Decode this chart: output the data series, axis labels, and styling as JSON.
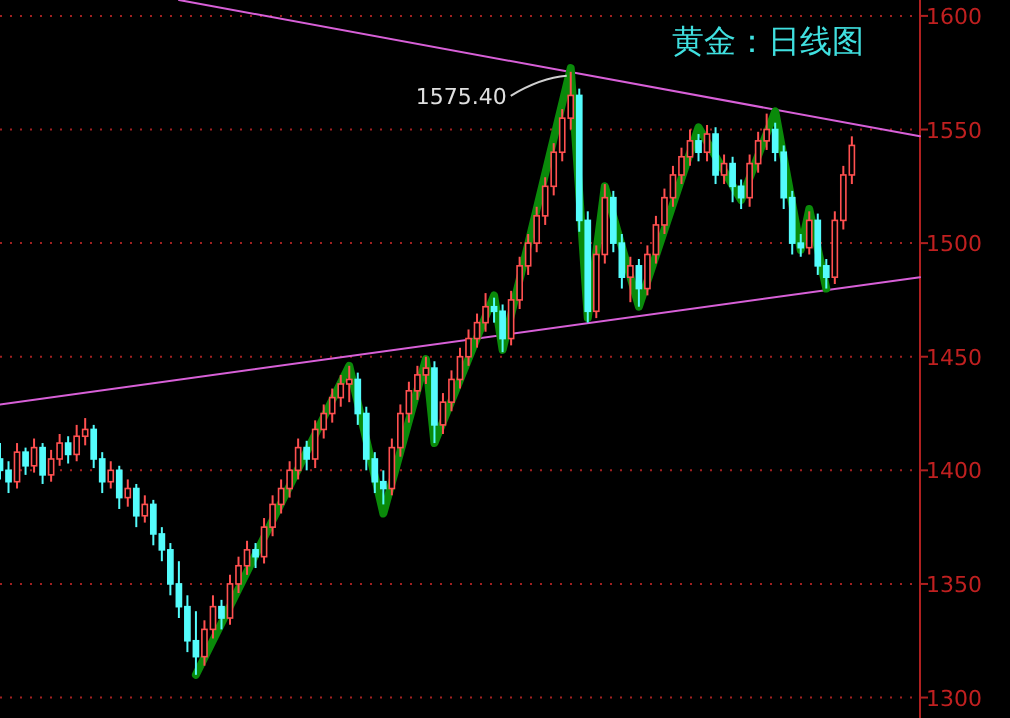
{
  "chart_data": {
    "type": "candlestick",
    "title": "黄金：日线图",
    "categories": [
      null,
      null,
      null,
      null,
      null,
      null,
      null,
      null,
      null,
      null,
      null,
      null,
      null,
      null,
      null,
      null,
      null,
      null,
      null,
      null,
      null,
      null,
      null,
      null,
      null,
      null,
      null,
      null,
      null,
      null,
      null,
      null,
      null,
      null,
      null,
      null,
      null,
      null,
      null,
      null,
      null,
      null,
      null,
      null,
      null,
      null,
      null,
      null,
      null,
      null,
      null,
      null,
      null,
      null,
      null,
      null,
      null,
      null,
      null,
      null,
      null,
      null,
      null,
      null,
      null,
      null,
      null,
      null,
      null,
      null,
      null,
      null,
      null,
      null,
      null,
      null,
      null,
      null,
      null,
      null,
      null,
      null,
      null,
      null,
      null,
      null,
      null,
      null,
      null,
      null,
      null,
      null,
      null,
      null,
      null,
      null,
      null,
      null,
      null,
      null,
      null,
      null,
      null,
      null,
      null,
      null,
      null,
      null,
      null
    ],
    "ohlc": [
      [
        1405,
        1412,
        1396,
        1400
      ],
      [
        1400,
        1404,
        1390,
        1395
      ],
      [
        1395,
        1412,
        1392,
        1408
      ],
      [
        1408,
        1410,
        1398,
        1402
      ],
      [
        1402,
        1414,
        1399,
        1410
      ],
      [
        1410,
        1412,
        1394,
        1398
      ],
      [
        1398,
        1409,
        1395,
        1405
      ],
      [
        1405,
        1416,
        1402,
        1412
      ],
      [
        1412,
        1415,
        1403,
        1407
      ],
      [
        1407,
        1420,
        1404,
        1415
      ],
      [
        1415,
        1423,
        1411,
        1418
      ],
      [
        1418,
        1420,
        1401,
        1405
      ],
      [
        1405,
        1408,
        1390,
        1395
      ],
      [
        1395,
        1404,
        1392,
        1400
      ],
      [
        1400,
        1402,
        1383,
        1388
      ],
      [
        1388,
        1396,
        1384,
        1392
      ],
      [
        1392,
        1394,
        1375,
        1380
      ],
      [
        1380,
        1389,
        1377,
        1385
      ],
      [
        1385,
        1387,
        1367,
        1372
      ],
      [
        1372,
        1375,
        1360,
        1365
      ],
      [
        1365,
        1368,
        1345,
        1350
      ],
      [
        1350,
        1360,
        1335,
        1340
      ],
      [
        1340,
        1345,
        1320,
        1325
      ],
      [
        1325,
        1338,
        1310,
        1318
      ],
      [
        1318,
        1334,
        1314,
        1330
      ],
      [
        1330,
        1345,
        1326,
        1340
      ],
      [
        1340,
        1343,
        1330,
        1335
      ],
      [
        1335,
        1354,
        1332,
        1350
      ],
      [
        1350,
        1362,
        1346,
        1358
      ],
      [
        1358,
        1369,
        1354,
        1365
      ],
      [
        1365,
        1368,
        1357,
        1362
      ],
      [
        1362,
        1379,
        1359,
        1375
      ],
      [
        1375,
        1389,
        1371,
        1385
      ],
      [
        1385,
        1396,
        1381,
        1392
      ],
      [
        1392,
        1404,
        1388,
        1400
      ],
      [
        1400,
        1414,
        1396,
        1410
      ],
      [
        1410,
        1413,
        1400,
        1405
      ],
      [
        1405,
        1422,
        1401,
        1418
      ],
      [
        1418,
        1429,
        1414,
        1425
      ],
      [
        1425,
        1436,
        1421,
        1432
      ],
      [
        1432,
        1442,
        1428,
        1438
      ],
      [
        1438,
        1446,
        1430,
        1440
      ],
      [
        1440,
        1443,
        1420,
        1425
      ],
      [
        1425,
        1428,
        1400,
        1405
      ],
      [
        1405,
        1408,
        1390,
        1395
      ],
      [
        1395,
        1400,
        1385,
        1392
      ],
      [
        1392,
        1414,
        1389,
        1410
      ],
      [
        1410,
        1429,
        1406,
        1425
      ],
      [
        1425,
        1439,
        1421,
        1435
      ],
      [
        1435,
        1446,
        1431,
        1442
      ],
      [
        1442,
        1450,
        1438,
        1445
      ],
      [
        1445,
        1448,
        1412,
        1420
      ],
      [
        1420,
        1434,
        1416,
        1430
      ],
      [
        1430,
        1444,
        1426,
        1440
      ],
      [
        1440,
        1454,
        1436,
        1450
      ],
      [
        1450,
        1462,
        1446,
        1458
      ],
      [
        1458,
        1469,
        1454,
        1465
      ],
      [
        1465,
        1478,
        1461,
        1472
      ],
      [
        1472,
        1476,
        1465,
        1470
      ],
      [
        1470,
        1473,
        1452,
        1458
      ],
      [
        1458,
        1479,
        1455,
        1475
      ],
      [
        1475,
        1494,
        1471,
        1490
      ],
      [
        1490,
        1504,
        1486,
        1500
      ],
      [
        1500,
        1516,
        1496,
        1512
      ],
      [
        1512,
        1529,
        1508,
        1525
      ],
      [
        1525,
        1544,
        1521,
        1540
      ],
      [
        1540,
        1559,
        1536,
        1555
      ],
      [
        1555,
        1575.4,
        1550,
        1565
      ],
      [
        1565,
        1568,
        1505,
        1510
      ],
      [
        1510,
        1514,
        1465,
        1470
      ],
      [
        1470,
        1499,
        1467,
        1495
      ],
      [
        1495,
        1526,
        1491,
        1520
      ],
      [
        1520,
        1523,
        1496,
        1500
      ],
      [
        1500,
        1504,
        1480,
        1485
      ],
      [
        1485,
        1494,
        1474,
        1490
      ],
      [
        1490,
        1493,
        1472,
        1480
      ],
      [
        1480,
        1499,
        1477,
        1495
      ],
      [
        1495,
        1512,
        1491,
        1508
      ],
      [
        1508,
        1524,
        1504,
        1520
      ],
      [
        1520,
        1534,
        1516,
        1530
      ],
      [
        1530,
        1542,
        1526,
        1538
      ],
      [
        1538,
        1550,
        1534,
        1545
      ],
      [
        1545,
        1548,
        1536,
        1540
      ],
      [
        1540,
        1552,
        1536,
        1548
      ],
      [
        1548,
        1551,
        1526,
        1530
      ],
      [
        1530,
        1539,
        1526,
        1535
      ],
      [
        1535,
        1538,
        1518,
        1525
      ],
      [
        1525,
        1528,
        1515,
        1520
      ],
      [
        1520,
        1539,
        1516,
        1535
      ],
      [
        1535,
        1549,
        1531,
        1545
      ],
      [
        1545,
        1557,
        1541,
        1550
      ],
      [
        1550,
        1553,
        1536,
        1540
      ],
      [
        1540,
        1543,
        1515,
        1520
      ],
      [
        1520,
        1523,
        1495,
        1500
      ],
      [
        1500,
        1504,
        1494,
        1498
      ],
      [
        1498,
        1514,
        1495,
        1510
      ],
      [
        1510,
        1513,
        1486,
        1490
      ],
      [
        1490,
        1493,
        1480,
        1485
      ],
      [
        1485,
        1514,
        1482,
        1510
      ],
      [
        1510,
        1534,
        1506,
        1530
      ],
      [
        1530,
        1547,
        1526,
        1543
      ],
      null,
      null,
      null,
      null,
      null,
      null,
      null,
      null
    ],
    "colors": [
      "#54fcfc",
      "#54fcfc",
      "#ff5050",
      "#54fcfc",
      "#ff5050",
      "#54fcfc",
      "#ff5050",
      "#ff5050",
      "#54fcfc",
      "#ff5050",
      "#ff5050",
      "#54fcfc",
      "#54fcfc",
      "#ff5050",
      "#54fcfc",
      "#ff5050",
      "#54fcfc",
      "#ff5050",
      "#54fcfc",
      "#54fcfc",
      "#54fcfc",
      "#54fcfc",
      "#54fcfc",
      "#54fcfc",
      "#ff5050",
      "#ff5050",
      "#54fcfc",
      "#ff5050",
      "#ff5050",
      "#ff5050",
      "#54fcfc",
      "#ff5050",
      "#ff5050",
      "#ff5050",
      "#ff5050",
      "#ff5050",
      "#54fcfc",
      "#ff5050",
      "#ff5050",
      "#ff5050",
      "#ff5050",
      "#ff5050",
      "#54fcfc",
      "#54fcfc",
      "#54fcfc",
      "#54fcfc",
      "#ff5050",
      "#ff5050",
      "#ff5050",
      "#ff5050",
      "#ff5050",
      "#54fcfc",
      "#ff5050",
      "#ff5050",
      "#ff5050",
      "#ff5050",
      "#ff5050",
      "#ff5050",
      "#54fcfc",
      "#54fcfc",
      "#ff5050",
      "#ff5050",
      "#ff5050",
      "#ff5050",
      "#ff5050",
      "#ff5050",
      "#ff5050",
      "#ff5050",
      "#54fcfc",
      "#54fcfc",
      "#ff5050",
      "#ff5050",
      "#54fcfc",
      "#54fcfc",
      "#ff5050",
      "#54fcfc",
      "#ff5050",
      "#ff5050",
      "#ff5050",
      "#ff5050",
      "#ff5050",
      "#ff5050",
      "#54fcfc",
      "#ff5050",
      "#54fcfc",
      "#ff5050",
      "#54fcfc",
      "#54fcfc",
      "#ff5050",
      "#ff5050",
      "#ff5050",
      "#54fcfc",
      "#54fcfc",
      "#54fcfc",
      "#54fcfc",
      "#ff5050",
      "#54fcfc",
      "#54fcfc",
      "#ff5050",
      "#ff5050",
      "#ff5050",
      null,
      null,
      null,
      null,
      null,
      null,
      null,
      null
    ],
    "series": [
      {
        "type": "line",
        "color": "#d860d8",
        "values": [
          null,
          null,
          null,
          null,
          null,
          null,
          null,
          null,
          null,
          null,
          null,
          null,
          null,
          null,
          null,
          null,
          null,
          null,
          null,
          null,
          null,
          1607,
          null,
          null,
          null,
          null,
          null,
          null,
          null,
          null,
          null,
          null,
          null,
          null,
          null,
          null,
          null,
          null,
          null,
          null,
          null,
          null,
          null,
          null,
          null,
          null,
          null,
          null,
          null,
          null,
          null,
          null,
          null,
          null,
          null,
          null,
          null,
          null,
          null,
          null,
          null,
          null,
          null,
          null,
          null,
          null,
          null,
          null,
          null,
          null,
          null,
          null,
          null,
          null,
          null,
          null,
          null,
          null,
          null,
          null,
          null,
          null,
          null,
          null,
          null,
          null,
          null,
          null,
          null,
          null,
          null,
          null,
          null,
          null,
          null,
          null,
          null,
          null,
          null,
          null,
          null,
          null,
          null,
          null,
          null,
          null,
          null,
          null,
          1547
        ]
      },
      {
        "type": "line",
        "color": "#d860d8",
        "values": [
          1429,
          null,
          null,
          null,
          null,
          null,
          null,
          null,
          null,
          null,
          null,
          null,
          null,
          null,
          null,
          null,
          null,
          null,
          null,
          null,
          null,
          null,
          null,
          null,
          null,
          null,
          null,
          null,
          null,
          null,
          null,
          null,
          null,
          null,
          null,
          null,
          null,
          null,
          null,
          null,
          null,
          null,
          null,
          null,
          null,
          null,
          null,
          null,
          null,
          null,
          null,
          null,
          null,
          null,
          null,
          null,
          null,
          null,
          null,
          null,
          null,
          null,
          null,
          null,
          null,
          null,
          null,
          null,
          null,
          null,
          null,
          null,
          null,
          null,
          null,
          null,
          null,
          null,
          null,
          null,
          null,
          null,
          null,
          null,
          null,
          null,
          null,
          null,
          null,
          null,
          null,
          null,
          null,
          null,
          null,
          null,
          null,
          null,
          null,
          null,
          null,
          null,
          null,
          null,
          null,
          null,
          null,
          null,
          1485
        ]
      },
      {
        "type": "line",
        "color": "#0a8a0a",
        "values": [
          null,
          null,
          null,
          null,
          null,
          null,
          null,
          null,
          null,
          null,
          null,
          null,
          null,
          null,
          null,
          null,
          null,
          null,
          null,
          null,
          null,
          null,
          null,
          1310,
          null,
          null,
          null,
          null,
          null,
          null,
          null,
          null,
          null,
          null,
          null,
          null,
          null,
          null,
          null,
          null,
          null,
          1446,
          null,
          null,
          null,
          1381,
          null,
          null,
          null,
          null,
          1449,
          1412,
          null,
          null,
          null,
          null,
          null,
          null,
          1477,
          1453,
          null,
          null,
          null,
          null,
          null,
          null,
          null,
          1577,
          null,
          1467,
          null,
          1525,
          null,
          null,
          null,
          1472,
          null,
          null,
          null,
          null,
          null,
          null,
          1551,
          null,
          null,
          null,
          null,
          1519,
          null,
          null,
          null,
          1558,
          null,
          null,
          1497,
          1515,
          null,
          1480,
          null,
          null,
          null,
          null,
          null,
          null,
          null,
          null,
          null,
          null,
          null
        ]
      }
    ],
    "annotations": [
      "1575.40"
    ],
    "ylim": [
      1291,
      1607
    ],
    "yticks": [
      1300,
      1350,
      1400,
      1450,
      1500,
      1550,
      1600
    ],
    "grid": "y",
    "tick_labels": "y"
  }
}
